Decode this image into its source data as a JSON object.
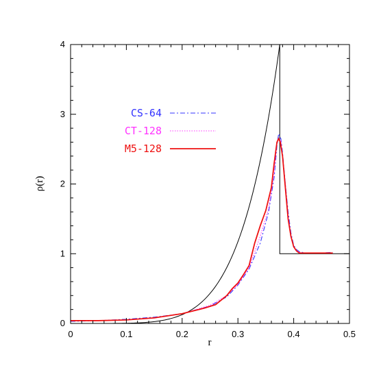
{
  "chart_data": {
    "type": "line",
    "title": "",
    "xlabel": "r",
    "ylabel": "ρ(r)",
    "xlim": [
      0,
      0.5
    ],
    "ylim": [
      0,
      4
    ],
    "x_ticks": [
      "0",
      "0.1",
      "0.2",
      "0.3",
      "0.4",
      "0.5"
    ],
    "y_ticks": [
      "0",
      "1",
      "2",
      "3",
      "4"
    ],
    "grid": false,
    "legend_position": "upper-left",
    "series": [
      {
        "name": "CS-64",
        "color": "#3333ff",
        "style": "dash-dot",
        "x": [
          0.0,
          0.05,
          0.1,
          0.15,
          0.2,
          0.25,
          0.28,
          0.3,
          0.32,
          0.34,
          0.355,
          0.365,
          0.37,
          0.373,
          0.377,
          0.38,
          0.385,
          0.39,
          0.395,
          0.4,
          0.405,
          0.41,
          0.415,
          0.42,
          0.43,
          0.45,
          0.47
        ],
        "y": [
          0.03,
          0.04,
          0.06,
          0.09,
          0.14,
          0.25,
          0.38,
          0.55,
          0.78,
          1.15,
          1.6,
          2.1,
          2.55,
          2.72,
          2.65,
          2.45,
          2.0,
          1.6,
          1.3,
          1.12,
          1.06,
          1.03,
          1.02,
          1.01,
          1.01,
          1.01,
          1.02
        ]
      },
      {
        "name": "CT-128",
        "color": "#ff33ff",
        "style": "dotted",
        "x": [
          0.0,
          0.05,
          0.1,
          0.15,
          0.2,
          0.25,
          0.28,
          0.3,
          0.32,
          0.34,
          0.355,
          0.365,
          0.37,
          0.373,
          0.377,
          0.38,
          0.385,
          0.39,
          0.395,
          0.4,
          0.405,
          0.41,
          0.415,
          0.42,
          0.43,
          0.45,
          0.47
        ],
        "y": [
          0.04,
          0.04,
          0.05,
          0.08,
          0.14,
          0.26,
          0.4,
          0.56,
          0.8,
          1.25,
          1.65,
          2.15,
          2.6,
          2.66,
          2.62,
          2.4,
          2.0,
          1.55,
          1.25,
          1.1,
          1.05,
          1.02,
          1.01,
          1.01,
          1.01,
          1.01,
          1.01
        ]
      },
      {
        "name": "M5-128",
        "color": "#ee1111",
        "style": "solid",
        "x": [
          0.0,
          0.05,
          0.1,
          0.15,
          0.2,
          0.24,
          0.26,
          0.28,
          0.29,
          0.3,
          0.31,
          0.32,
          0.33,
          0.34,
          0.35,
          0.36,
          0.365,
          0.37,
          0.373,
          0.376,
          0.38,
          0.385,
          0.39,
          0.395,
          0.4,
          0.405,
          0.41,
          0.42,
          0.44,
          0.47
        ],
        "y": [
          0.04,
          0.04,
          0.05,
          0.08,
          0.14,
          0.22,
          0.27,
          0.4,
          0.5,
          0.58,
          0.7,
          0.83,
          1.15,
          1.4,
          1.62,
          1.95,
          2.3,
          2.6,
          2.65,
          2.6,
          2.4,
          1.95,
          1.5,
          1.25,
          1.1,
          1.04,
          1.01,
          1.01,
          1.01,
          1.01
        ]
      }
    ],
    "reference_lines": [
      {
        "kind": "power-law curve",
        "color": "#000000",
        "x_start": 0.0,
        "x_end": 0.375,
        "y_at_end": 4.0,
        "exponent": 5.5
      },
      {
        "kind": "step",
        "color": "#000000",
        "x": 0.375,
        "y_after": 1.0,
        "x_end": 0.5
      }
    ]
  }
}
